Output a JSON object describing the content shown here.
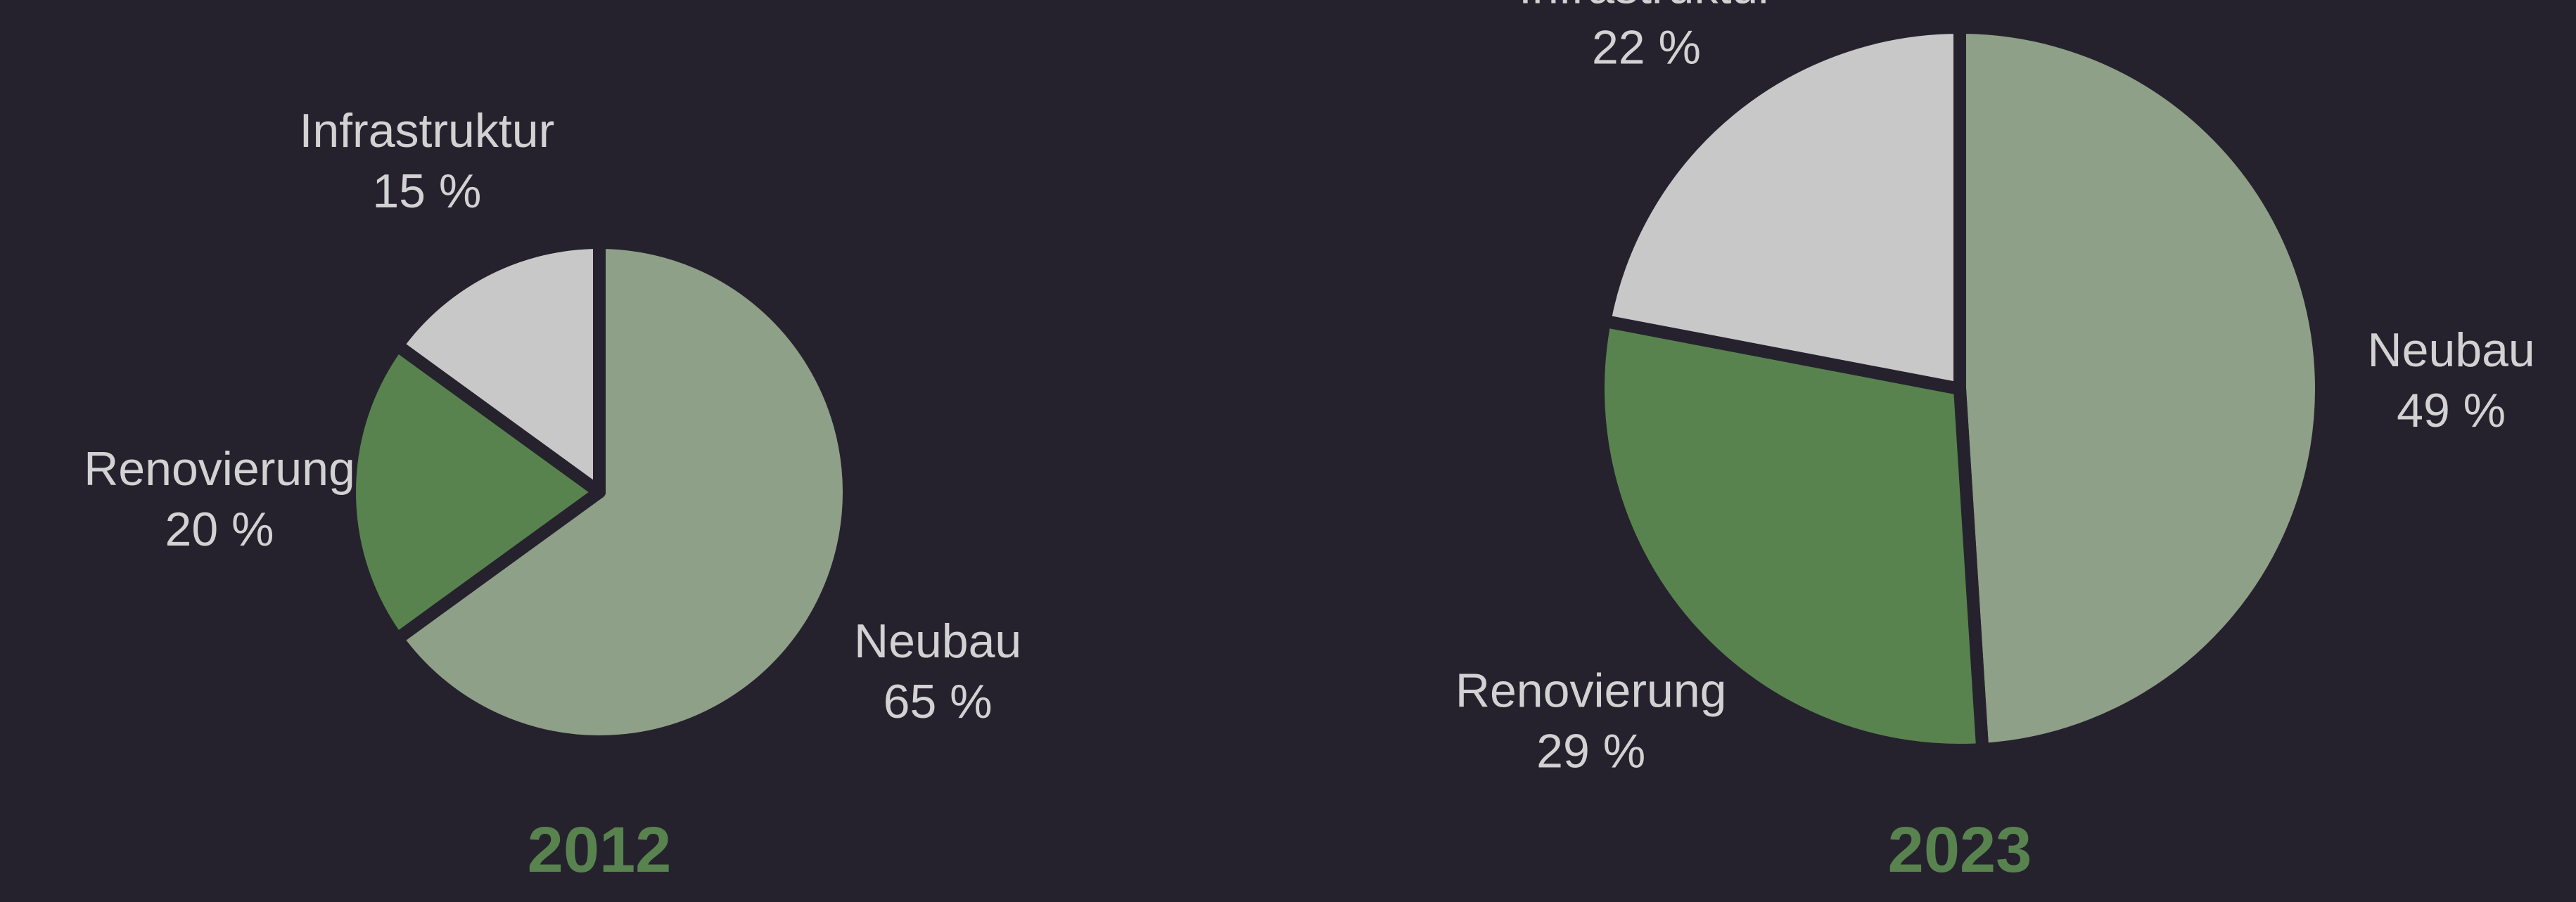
{
  "chart_data": [
    {
      "type": "pie",
      "title": "2012",
      "categories": [
        "Neubau",
        "Renovierung",
        "Infrastruktur"
      ],
      "values": [
        65,
        20,
        15
      ],
      "value_labels": [
        "65 %",
        "20 %",
        "15 %"
      ],
      "colors": [
        "#8fa088",
        "#58834f",
        "#c8c8c8"
      ]
    },
    {
      "type": "pie",
      "title": "2023",
      "categories": [
        "Neubau",
        "Renovierung",
        "Infrastruktur"
      ],
      "values": [
        49,
        29,
        22
      ],
      "value_labels": [
        "49 %",
        "29 %",
        "22 %"
      ],
      "colors": [
        "#8fa088",
        "#58834f",
        "#c8c8c8"
      ]
    }
  ]
}
